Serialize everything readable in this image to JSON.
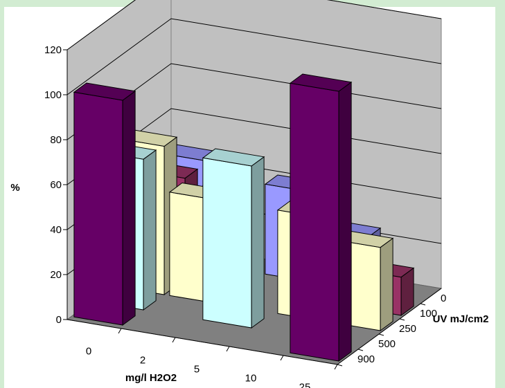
{
  "chart_data": {
    "type": "bar",
    "subtype": "3d-bar",
    "title": "",
    "ylabel": "%",
    "xlabel": "mg/l H2O2",
    "zlabel": "UV mJ/cm2",
    "ylim": [
      0,
      120
    ],
    "yticks": [
      0,
      20,
      40,
      60,
      80,
      100,
      120
    ],
    "grid": true,
    "legend": "none",
    "categories": [
      "0",
      "2",
      "5",
      "10",
      "25"
    ],
    "depth_categories": [
      "0",
      "100",
      "250",
      "500",
      "900"
    ],
    "series": [
      {
        "uv": "900",
        "color": "#9999ff",
        "values": [
          46,
          null,
          40,
          24,
          null
        ]
      },
      {
        "uv": "500",
        "color": "#993366",
        "values": [
          45,
          38,
          null,
          26,
          17
        ]
      },
      {
        "uv": "250",
        "color": "#ffffcc",
        "values": [
          66,
          46,
          null,
          46,
          37
        ]
      },
      {
        "uv": "100",
        "color": "#ccffff",
        "values": [
          67,
          null,
          72,
          null,
          null
        ]
      },
      {
        "uv": "0",
        "color": "#660066",
        "values": [
          100,
          null,
          null,
          null,
          120
        ]
      }
    ]
  }
}
